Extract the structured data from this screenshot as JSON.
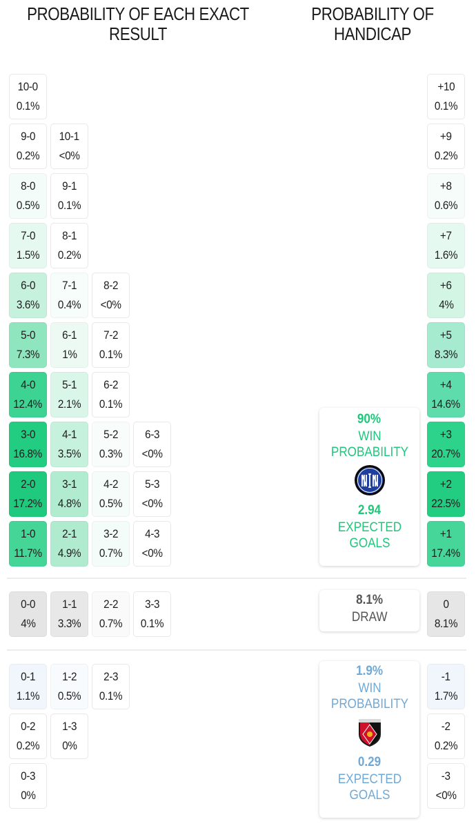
{
  "headings": {
    "exact_result": "PROBABILITY OF EACH EXACT RESULT",
    "handicap": "PROBABILITY OF HANDICAP"
  },
  "colors": {
    "home_accent": "#1fc77a",
    "away_accent": "#6fa9d7",
    "draw_text": "#555555",
    "draw_cell": "#e6e6e6"
  },
  "home_results": [
    {
      "score": "10-0",
      "pct": "0.1%",
      "col": 0,
      "row": 0,
      "bg": "#ffffff"
    },
    {
      "score": "9-0",
      "pct": "0.2%",
      "col": 0,
      "row": 1,
      "bg": "#ffffff"
    },
    {
      "score": "10-1",
      "pct": "<0%",
      "col": 1,
      "row": 1,
      "bg": "#ffffff"
    },
    {
      "score": "8-0",
      "pct": "0.5%",
      "col": 0,
      "row": 2,
      "bg": "#f3fcf8"
    },
    {
      "score": "9-1",
      "pct": "0.1%",
      "col": 1,
      "row": 2,
      "bg": "#ffffff"
    },
    {
      "score": "7-0",
      "pct": "1.5%",
      "col": 0,
      "row": 3,
      "bg": "#e6f9f0"
    },
    {
      "score": "8-1",
      "pct": "0.2%",
      "col": 1,
      "row": 3,
      "bg": "#ffffff"
    },
    {
      "score": "6-0",
      "pct": "3.6%",
      "col": 0,
      "row": 4,
      "bg": "#c6f1dc"
    },
    {
      "score": "7-1",
      "pct": "0.4%",
      "col": 1,
      "row": 4,
      "bg": "#f6fdfa"
    },
    {
      "score": "8-2",
      "pct": "<0%",
      "col": 2,
      "row": 4,
      "bg": "#ffffff"
    },
    {
      "score": "5-0",
      "pct": "7.3%",
      "col": 0,
      "row": 5,
      "bg": "#8fe5bd"
    },
    {
      "score": "6-1",
      "pct": "1%",
      "col": 1,
      "row": 5,
      "bg": "#ecfaf3"
    },
    {
      "score": "7-2",
      "pct": "0.1%",
      "col": 2,
      "row": 5,
      "bg": "#ffffff"
    },
    {
      "score": "4-0",
      "pct": "12.4%",
      "col": 0,
      "row": 6,
      "bg": "#3dd393"
    },
    {
      "score": "5-1",
      "pct": "2.1%",
      "col": 1,
      "row": 6,
      "bg": "#d9f6e8"
    },
    {
      "score": "6-2",
      "pct": "0.1%",
      "col": 2,
      "row": 6,
      "bg": "#ffffff"
    },
    {
      "score": "3-0",
      "pct": "16.8%",
      "col": 0,
      "row": 7,
      "bg": "#22cc81"
    },
    {
      "score": "4-1",
      "pct": "3.5%",
      "col": 1,
      "row": 7,
      "bg": "#c6f1dc"
    },
    {
      "score": "5-2",
      "pct": "0.3%",
      "col": 2,
      "row": 7,
      "bg": "#f8fdfb"
    },
    {
      "score": "6-3",
      "pct": "<0%",
      "col": 3,
      "row": 7,
      "bg": "#ffffff"
    },
    {
      "score": "2-0",
      "pct": "17.2%",
      "col": 0,
      "row": 8,
      "bg": "#1fca7e"
    },
    {
      "score": "3-1",
      "pct": "4.8%",
      "col": 1,
      "row": 8,
      "bg": "#b1ecd0"
    },
    {
      "score": "4-2",
      "pct": "0.5%",
      "col": 2,
      "row": 8,
      "bg": "#f5fcf9"
    },
    {
      "score": "5-3",
      "pct": "<0%",
      "col": 3,
      "row": 8,
      "bg": "#ffffff"
    },
    {
      "score": "1-0",
      "pct": "11.7%",
      "col": 0,
      "row": 9,
      "bg": "#44d597"
    },
    {
      "score": "2-1",
      "pct": "4.9%",
      "col": 1,
      "row": 9,
      "bg": "#b0ebcf"
    },
    {
      "score": "3-2",
      "pct": "0.7%",
      "col": 2,
      "row": 9,
      "bg": "#f3fcf8"
    },
    {
      "score": "4-3",
      "pct": "<0%",
      "col": 3,
      "row": 9,
      "bg": "#ffffff"
    }
  ],
  "draw_results": [
    {
      "score": "0-0",
      "pct": "4%",
      "col": 0,
      "bg": "#e5e5e5"
    },
    {
      "score": "1-1",
      "pct": "3.3%",
      "col": 1,
      "bg": "#e8e8e8"
    },
    {
      "score": "2-2",
      "pct": "0.7%",
      "col": 2,
      "bg": "#fafafa"
    },
    {
      "score": "3-3",
      "pct": "0.1%",
      "col": 3,
      "bg": "#ffffff"
    }
  ],
  "away_results": [
    {
      "score": "0-1",
      "pct": "1.1%",
      "col": 0,
      "row": 0,
      "bg": "#f0f6fb"
    },
    {
      "score": "1-2",
      "pct": "0.5%",
      "col": 1,
      "row": 0,
      "bg": "#f8fbfd"
    },
    {
      "score": "2-3",
      "pct": "0.1%",
      "col": 2,
      "row": 0,
      "bg": "#ffffff"
    },
    {
      "score": "0-2",
      "pct": "0.2%",
      "col": 0,
      "row": 1,
      "bg": "#ffffff"
    },
    {
      "score": "1-3",
      "pct": "0%",
      "col": 1,
      "row": 1,
      "bg": "#ffffff"
    },
    {
      "score": "0-3",
      "pct": "0%",
      "col": 0,
      "row": 2,
      "bg": "#ffffff"
    }
  ],
  "handicap_home": [
    {
      "label": "+10",
      "pct": "0.1%",
      "row": 0,
      "bg": "#ffffff"
    },
    {
      "label": "+9",
      "pct": "0.2%",
      "row": 1,
      "bg": "#ffffff"
    },
    {
      "label": "+8",
      "pct": "0.6%",
      "row": 2,
      "bg": "#f5fcf9"
    },
    {
      "label": "+7",
      "pct": "1.6%",
      "row": 3,
      "bg": "#e6f9f0"
    },
    {
      "label": "+6",
      "pct": "4%",
      "row": 4,
      "bg": "#d3f5e4"
    },
    {
      "label": "+5",
      "pct": "8.3%",
      "row": 5,
      "bg": "#a6ead0"
    },
    {
      "label": "+4",
      "pct": "14.6%",
      "row": 6,
      "bg": "#5fdcab"
    },
    {
      "label": "+3",
      "pct": "20.7%",
      "row": 7,
      "bg": "#2ed38b"
    },
    {
      "label": "+2",
      "pct": "22.5%",
      "row": 8,
      "bg": "#22cd81"
    },
    {
      "label": "+1",
      "pct": "17.4%",
      "row": 9,
      "bg": "#47d69a"
    }
  ],
  "handicap_draw": {
    "label": "0",
    "pct": "8.1%",
    "bg": "#e6e6e6"
  },
  "handicap_away": [
    {
      "label": "-1",
      "pct": "1.7%",
      "row": 0,
      "bg": "#f0f6fb"
    },
    {
      "label": "-2",
      "pct": "0.2%",
      "row": 1,
      "bg": "#ffffff"
    },
    {
      "label": "-3",
      "pct": "<0%",
      "row": 2,
      "bg": "#ffffff"
    }
  ],
  "home_summary": {
    "win_pct": "90%",
    "win_label": "WIN PROBABILITY",
    "team_logo": "inter-milan-crest-icon",
    "xg": "2.94",
    "xg_label": "EXPECTED GOALS"
  },
  "draw_summary": {
    "pct": "8.1%",
    "label": "DRAW"
  },
  "away_summary": {
    "win_pct": "1.9%",
    "win_label": "WIN PROBABILITY",
    "team_logo": "urawa-reds-crest-icon",
    "xg": "0.29",
    "xg_label": "EXPECTED GOALS"
  }
}
